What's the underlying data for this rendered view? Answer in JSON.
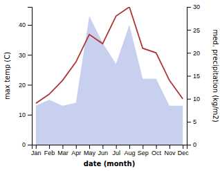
{
  "chart_data": {
    "type": "line",
    "x_label": "date (month)",
    "y_label": "max temp (C)",
    "y2_label": "med. precipitation (kg/m2)",
    "categories": [
      "Jan",
      "Feb",
      "Mar",
      "Apr",
      "May",
      "Jun",
      "Jul",
      "Aug",
      "Sep",
      "Oct",
      "Nov",
      "Dec"
    ],
    "series": [
      {
        "type": "area",
        "color": "#c8d0f0",
        "values": [
          13,
          15,
          13,
          14,
          43,
          34,
          27,
          40,
          22,
          22,
          13,
          13
        ]
      },
      {
        "type": "line",
        "color": "#b03535",
        "axis": "y2",
        "values": [
          9,
          11,
          14,
          18,
          24,
          22,
          28,
          30,
          21,
          20,
          14,
          10
        ]
      }
    ],
    "ylim": [
      0,
      46
    ],
    "yticks": [
      0,
      10,
      20,
      30,
      40
    ],
    "y2lim": [
      0,
      30
    ],
    "y2ticks": [
      0,
      5,
      10,
      15,
      20,
      25,
      30
    ],
    "grid": false
  }
}
